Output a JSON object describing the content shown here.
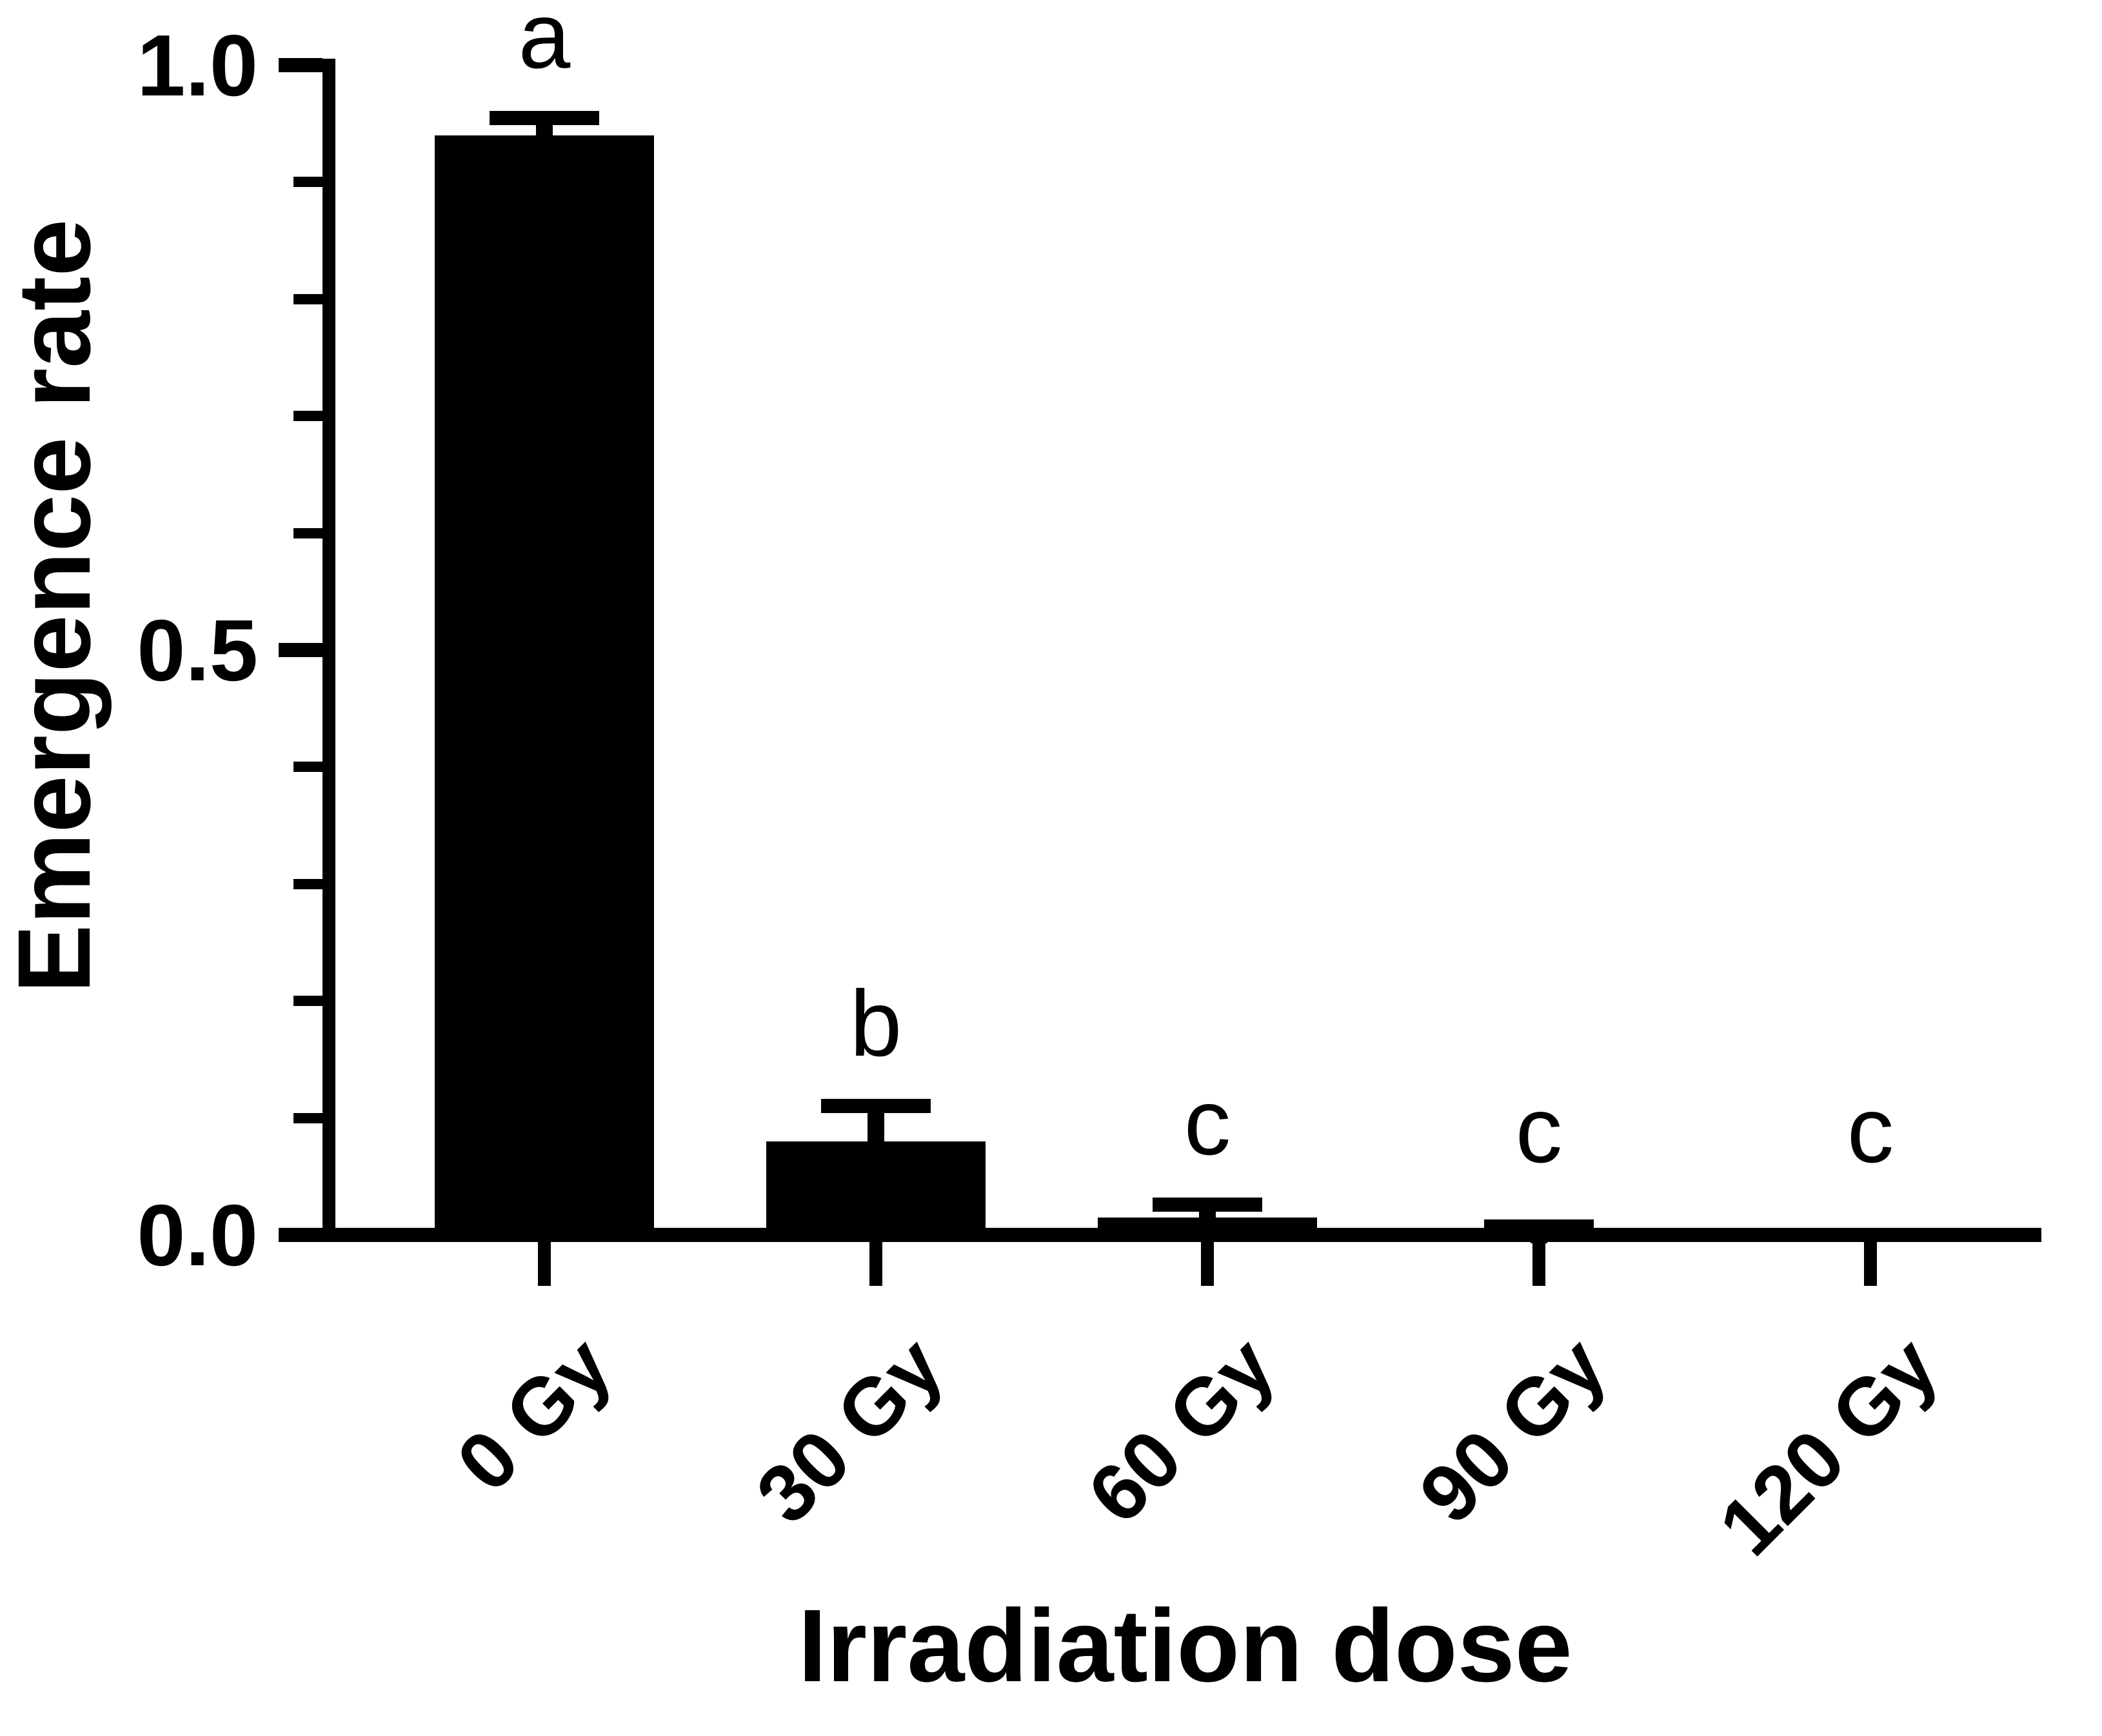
{
  "figure": {
    "background_color": "#ffffff",
    "ink_color": "#000000"
  },
  "chart_data": {
    "type": "bar",
    "title": "",
    "xlabel": "Irradiation dose",
    "ylabel": "Emergence rate",
    "categories": [
      "0 Gy",
      "30 Gy",
      "60 Gy",
      "90 Gy",
      "120 Gy"
    ],
    "series": [
      {
        "name": "Emergence rate",
        "values": [
          0.94,
          0.08,
          0.015,
          0.004,
          0.0
        ],
        "errors_upper_sem": [
          0.015,
          0.03,
          0.011,
          0.003,
          0.0
        ]
      }
    ],
    "significance_letters": [
      "a",
      "b",
      "c",
      "c",
      "c"
    ],
    "bar_color": "#000000",
    "error_bar_style": "upper-only-with-cap",
    "ylim": [
      0.0,
      1.0
    ],
    "yticks": [
      {
        "value": 0.0,
        "label": "0.0"
      },
      {
        "value": 0.5,
        "label": "0.5"
      },
      {
        "value": 1.0,
        "label": "1.0"
      }
    ],
    "y_minor_tick_step": 0.1,
    "xtick_label_rotation_deg": -45,
    "grid": false,
    "legend": null
  }
}
